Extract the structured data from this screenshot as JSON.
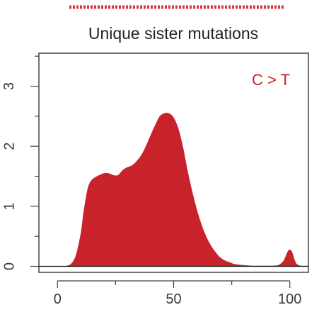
{
  "chart_data": {
    "type": "area",
    "title": "Unique sister mutations",
    "annotation": "C > T",
    "xlim": [
      -8,
      108
    ],
    "ylim": [
      -0.1,
      3.55
    ],
    "x_ticks": [
      0,
      50,
      100
    ],
    "x_minor_ticks": [
      25,
      75
    ],
    "y_ticks": [
      0,
      1,
      2,
      3
    ],
    "y_minor_ticks": [
      0.5,
      1.5,
      2.5,
      3.5
    ],
    "grid": false,
    "series": [
      {
        "x": [
          -2,
          2,
          4,
          6,
          8,
          10,
          11,
          12,
          13,
          14,
          15,
          16,
          18,
          20,
          22,
          24,
          26,
          28,
          30,
          32,
          34,
          36,
          38,
          40,
          42,
          44,
          46,
          48,
          50,
          52,
          54,
          56,
          58,
          60,
          62,
          64,
          66,
          68,
          70,
          72,
          74,
          76,
          78,
          80,
          84,
          88,
          92,
          95,
          97,
          98,
          99,
          100,
          101,
          102,
          103,
          105,
          110
        ],
        "y": [
          0,
          0,
          0.01,
          0.05,
          0.2,
          0.55,
          0.85,
          1.1,
          1.3,
          1.4,
          1.45,
          1.48,
          1.52,
          1.55,
          1.55,
          1.52,
          1.52,
          1.6,
          1.65,
          1.68,
          1.75,
          1.85,
          2.0,
          2.18,
          2.35,
          2.5,
          2.55,
          2.55,
          2.48,
          2.3,
          2.0,
          1.6,
          1.25,
          0.95,
          0.7,
          0.5,
          0.35,
          0.24,
          0.15,
          0.1,
          0.07,
          0.04,
          0.03,
          0.02,
          0.01,
          0.01,
          0.01,
          0.02,
          0.08,
          0.15,
          0.24,
          0.28,
          0.24,
          0.12,
          0.04,
          0.01,
          0.01
        ]
      }
    ]
  },
  "colors": {
    "fill": "#C8232B",
    "axis": "#444444",
    "annotation": "#C8232B",
    "header_bar": "#D33A3F"
  }
}
